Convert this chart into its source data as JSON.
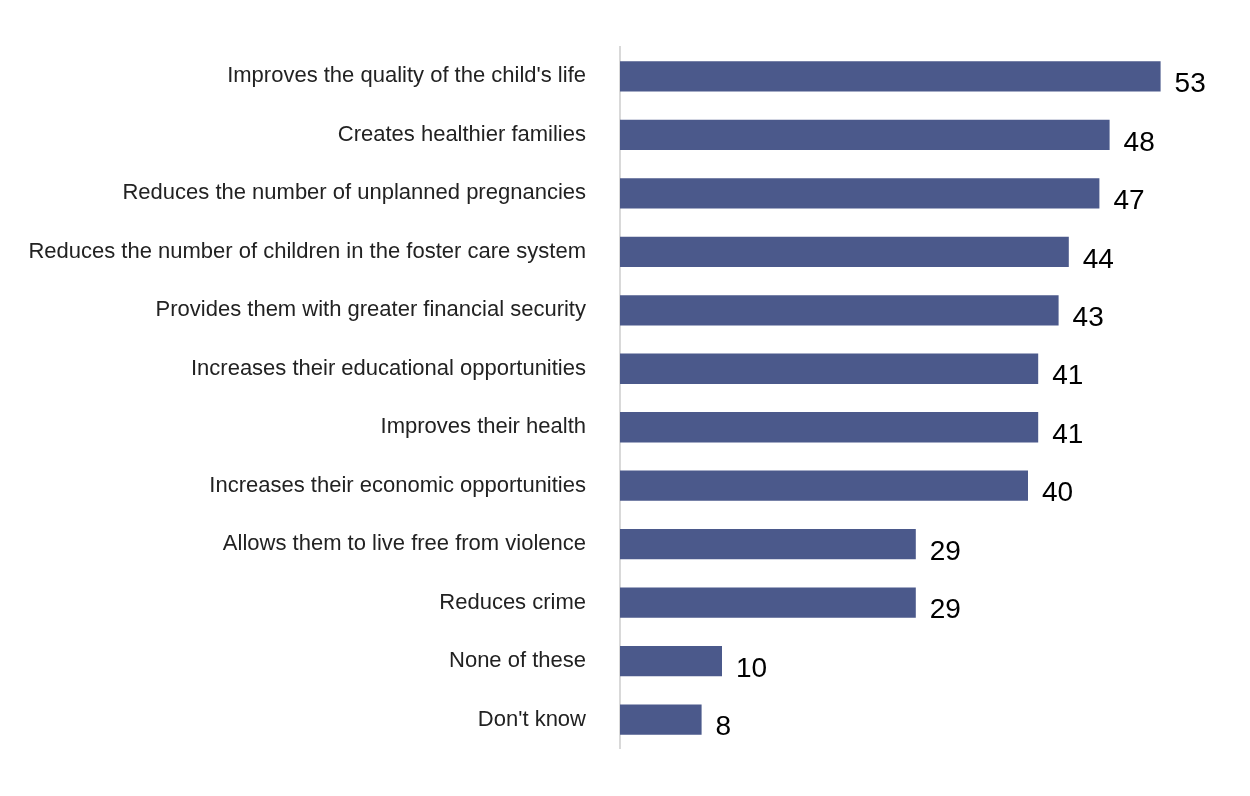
{
  "chart_data": {
    "type": "bar",
    "orientation": "horizontal",
    "categories": [
      "Improves the quality of the child's life",
      "Creates healthier families",
      "Reduces the number of unplanned pregnancies",
      "Reduces the number of children in the foster care system",
      "Provides them with greater financial security",
      "Increases their educational opportunities",
      "Improves their health",
      "Increases their economic opportunities",
      "Allows them to live free from violence",
      "Reduces crime",
      "None of these",
      "Don't know"
    ],
    "values": [
      53,
      48,
      47,
      44,
      43,
      41,
      41,
      40,
      29,
      29,
      10,
      8
    ],
    "color": "#4b598b",
    "data_labels": true
  }
}
